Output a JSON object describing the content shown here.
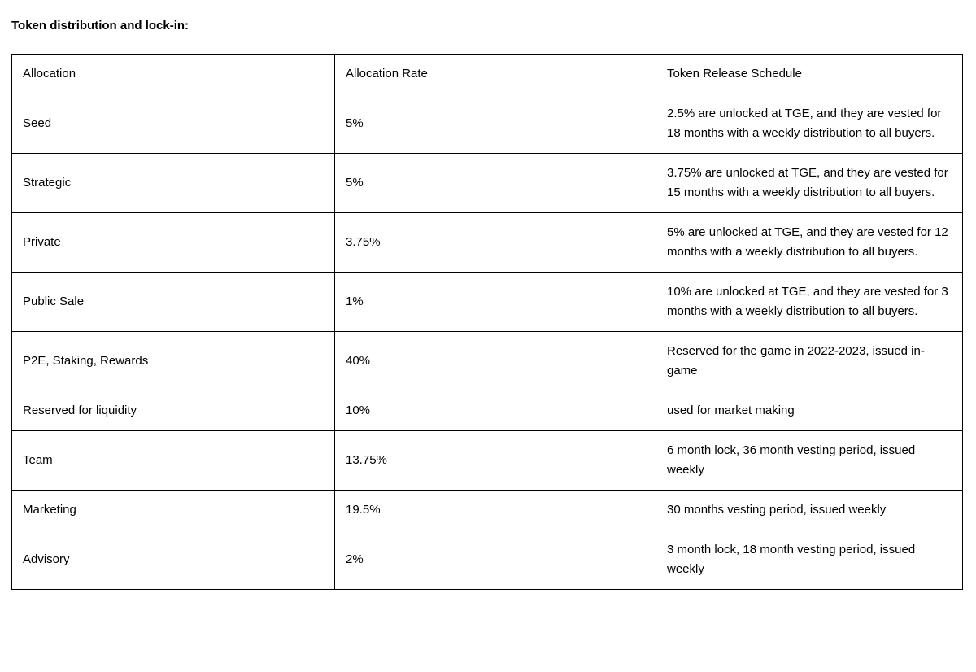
{
  "page": {
    "title": "Token distribution and lock-in:"
  },
  "table": {
    "columns": [
      "Allocation",
      "Allocation Rate",
      "Token Release Schedule"
    ],
    "rows": [
      [
        "Seed",
        "5%",
        "2.5% are unlocked at TGE, and they are vested for 18 months with a weekly distribution to all buyers."
      ],
      [
        "Strategic",
        "5%",
        "3.75% are unlocked at TGE, and they are vested for 15 months with a weekly distribution to all buyers."
      ],
      [
        "Private",
        "3.75%",
        "5% are unlocked at TGE, and they are vested for 12 months with a weekly distribution to all buyers."
      ],
      [
        "Public Sale",
        "1%",
        "10% are unlocked at TGE, and they are vested for 3 months with a weekly distribution to all buyers."
      ],
      [
        "P2E, Staking, Rewards",
        "40%",
        "Reserved for the game in 2022-2023, issued in-game"
      ],
      [
        "Reserved for liquidity",
        "10%",
        "used for market making"
      ],
      [
        "Team",
        "13.75%",
        "6 month lock, 36 month vesting period, issued weekly"
      ],
      [
        "Marketing",
        "19.5%",
        "30 months vesting period, issued weekly"
      ],
      [
        "Advisory",
        "2%",
        "3 month lock, 18 month vesting period, issued weekly"
      ]
    ]
  },
  "colors": {
    "border": "#000000",
    "text": "#000000",
    "background": "#ffffff"
  }
}
